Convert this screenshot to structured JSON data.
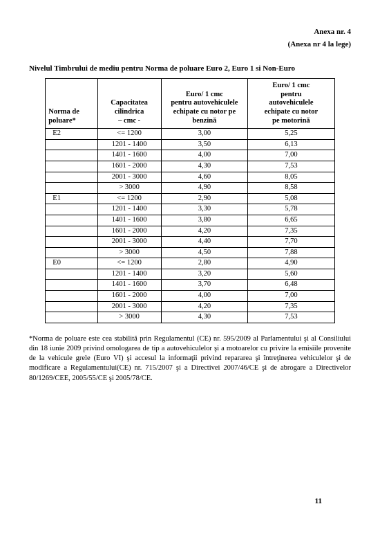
{
  "header": {
    "line1": "Anexa nr. 4",
    "line2": "(Anexa nr 4 la lege)"
  },
  "title": "Nivelul Timbrului de mediu pentru Norma de poluare Euro 2, Euro 1 si Non-Euro",
  "table": {
    "columns": {
      "c1a": "Norma de",
      "c1b": "poluare*",
      "c2a": "Capacitatea",
      "c2b": "cilindrica",
      "c2c": "– cmc -",
      "c3a": "Euro/ 1 cmc",
      "c3b": "pentru autovehiculele",
      "c3c": "echipate cu notor pe",
      "c3d": "benzină",
      "c4a": "Euro/ 1 cmc",
      "c4b": "pentru",
      "c4c": "autovehiculele",
      "c4d": "echipate cu notor",
      "c4e": "pe motorină"
    },
    "groups": [
      {
        "norma": "E2",
        "rows": [
          {
            "cap": "<= 1200",
            "b": "3,00",
            "m": "5,25"
          },
          {
            "cap": "1201 - 1400",
            "b": "3,50",
            "m": "6,13"
          },
          {
            "cap": "1401 - 1600",
            "b": "4,00",
            "m": "7,00"
          },
          {
            "cap": "1601 - 2000",
            "b": "4,30",
            "m": "7,53"
          },
          {
            "cap": "2001 - 3000",
            "b": "4,60",
            "m": "8,05"
          },
          {
            "cap": "> 3000",
            "b": "4,90",
            "m": "8,58"
          }
        ]
      },
      {
        "norma": "E1",
        "rows": [
          {
            "cap": "<= 1200",
            "b": "2,90",
            "m": "5,08"
          },
          {
            "cap": "1201 - 1400",
            "b": "3,30",
            "m": "5,78"
          },
          {
            "cap": "1401 - 1600",
            "b": "3,80",
            "m": "6,65"
          },
          {
            "cap": "1601 - 2000",
            "b": "4,20",
            "m": "7,35"
          },
          {
            "cap": "2001 - 3000",
            "b": "4,40",
            "m": "7,70"
          },
          {
            "cap": "> 3000",
            "b": "4,50",
            "m": "7,88"
          }
        ]
      },
      {
        "norma": "E0",
        "rows": [
          {
            "cap": "<= 1200",
            "b": "2,80",
            "m": "4,90"
          },
          {
            "cap": "1201 - 1400",
            "b": "3,20",
            "m": "5,60"
          },
          {
            "cap": "1401 - 1600",
            "b": "3,70",
            "m": "6,48"
          },
          {
            "cap": "1601 - 2000",
            "b": "4,00",
            "m": "7,00"
          },
          {
            "cap": "2001 - 3000",
            "b": "4,20",
            "m": "7,35"
          },
          {
            "cap": "> 3000",
            "b": "4,30",
            "m": "7,53"
          }
        ]
      }
    ]
  },
  "footnote": "*Norma de poluare este cea stabilită prin Regulamentul (CE) nr. 595/2009 al Parlamentului şi al Consiliului din 18 iunie 2009 privind omologarea de tip a autovehiculelor şi a motoarelor cu privire la emisiile provenite de la vehicule grele (Euro VI) şi accesul la informaţii privind repararea şi întreţinerea vehiculelor şi de modificare a Regulamentului(CE) nr. 715/2007 şi a Directivei 2007/46/CE şi de abrogare a Directivelor 80/1269/CEE, 2005/55/CE şi 2005/78/CE.",
  "page_number": "11"
}
